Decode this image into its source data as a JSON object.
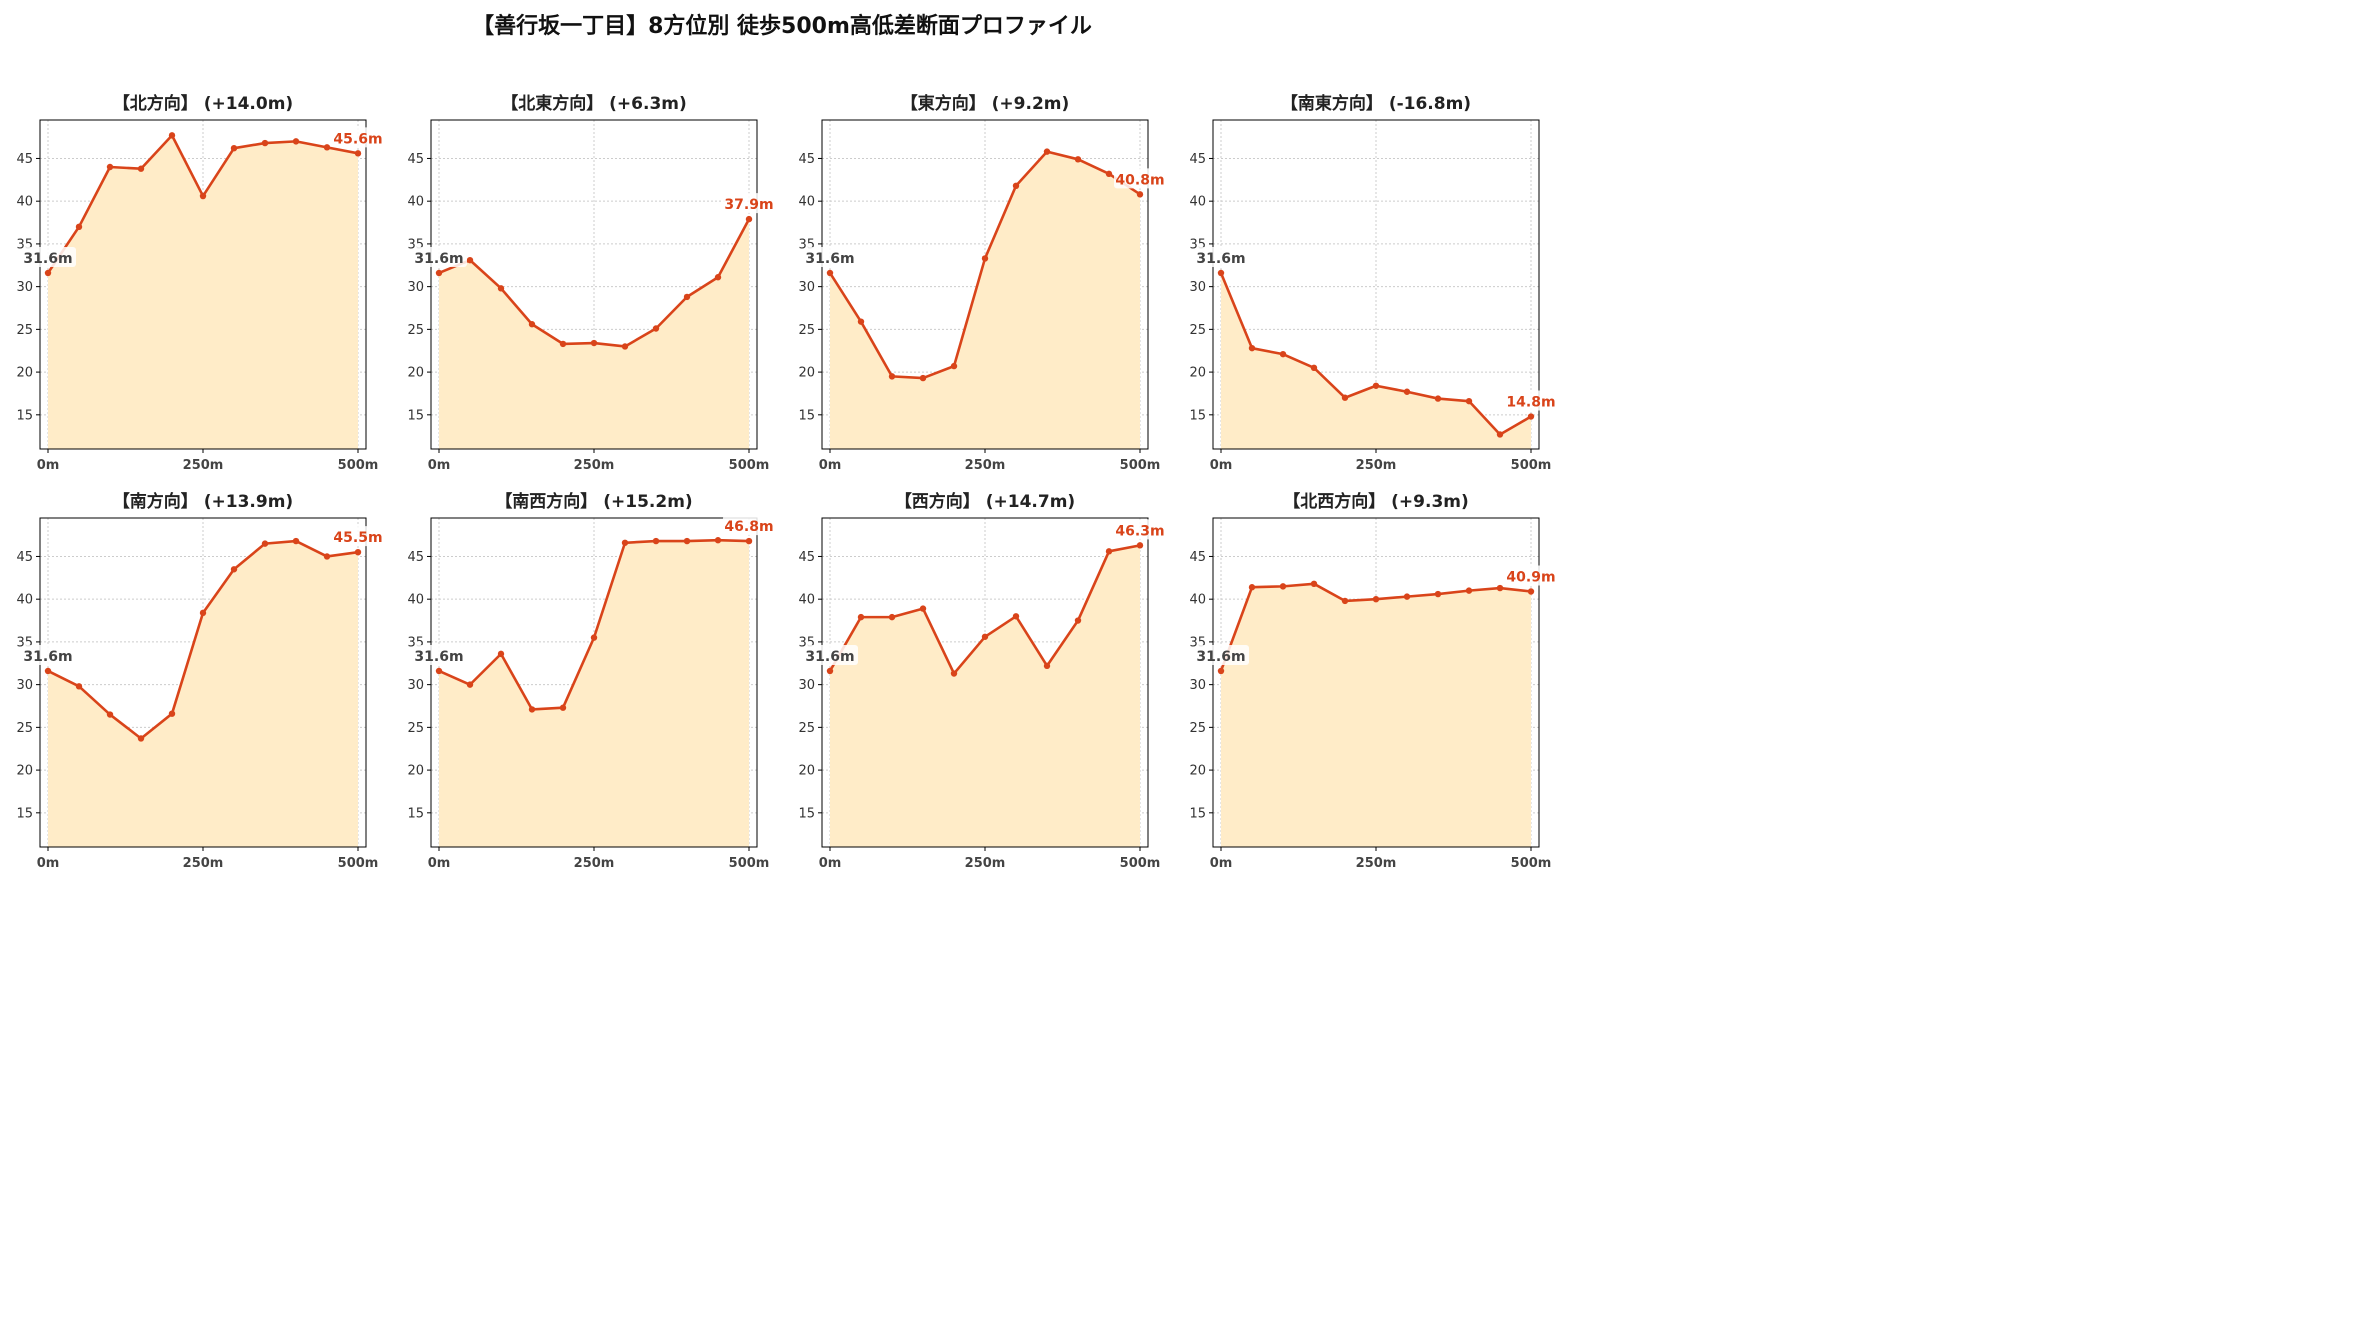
{
  "title": "【善行坂一丁目】8方位別 徒歩500m高低差断面プロファイル",
  "colors": {
    "line": "#d9441a",
    "fill": "#ffecc8",
    "end_label": "#d9441a",
    "grid": "#cccccc"
  },
  "chart_data": [
    {
      "type": "area",
      "title": "【北方向】 (+14.0m)",
      "start_label": "31.6m",
      "end_label": "45.6m",
      "x": [
        0,
        50,
        100,
        150,
        200,
        250,
        300,
        350,
        400,
        450,
        500
      ],
      "values": [
        31.6,
        37.0,
        44.0,
        43.8,
        47.7,
        40.6,
        46.2,
        46.8,
        47.0,
        46.3,
        45.6
      ],
      "xticks": [
        "0m",
        "250m",
        "500m"
      ],
      "yticks": [
        15,
        20,
        25,
        30,
        35,
        40,
        45
      ],
      "ylim": [
        11,
        49.5
      ],
      "grid": true
    },
    {
      "type": "area",
      "title": "【北東方向】 (+6.3m)",
      "start_label": "31.6m",
      "end_label": "37.9m",
      "x": [
        0,
        50,
        100,
        150,
        200,
        250,
        300,
        350,
        400,
        450,
        500
      ],
      "values": [
        31.6,
        33.1,
        29.8,
        25.6,
        23.3,
        23.4,
        23.0,
        25.1,
        28.8,
        31.1,
        37.9
      ],
      "xticks": [
        "0m",
        "250m",
        "500m"
      ],
      "yticks": [
        15,
        20,
        25,
        30,
        35,
        40,
        45
      ],
      "ylim": [
        11,
        49.5
      ],
      "grid": true
    },
    {
      "type": "area",
      "title": "【東方向】 (+9.2m)",
      "start_label": "31.6m",
      "end_label": "40.8m",
      "x": [
        0,
        50,
        100,
        150,
        200,
        250,
        300,
        350,
        400,
        450,
        500
      ],
      "values": [
        31.6,
        25.9,
        19.5,
        19.3,
        20.7,
        33.3,
        41.8,
        45.8,
        44.9,
        43.2,
        40.8
      ],
      "xticks": [
        "0m",
        "250m",
        "500m"
      ],
      "yticks": [
        15,
        20,
        25,
        30,
        35,
        40,
        45
      ],
      "ylim": [
        11,
        49.5
      ],
      "grid": true
    },
    {
      "type": "area",
      "title": "【南東方向】 (-16.8m)",
      "start_label": "31.6m",
      "end_label": "14.8m",
      "x": [
        0,
        50,
        100,
        150,
        200,
        250,
        300,
        350,
        400,
        450,
        500
      ],
      "values": [
        31.6,
        22.8,
        22.1,
        20.5,
        17.0,
        18.4,
        17.7,
        16.9,
        16.6,
        12.7,
        14.8
      ],
      "xticks": [
        "0m",
        "250m",
        "500m"
      ],
      "yticks": [
        15,
        20,
        25,
        30,
        35,
        40,
        45
      ],
      "ylim": [
        11,
        49.5
      ],
      "grid": true
    },
    {
      "type": "area",
      "title": "【南方向】 (+13.9m)",
      "start_label": "31.6m",
      "end_label": "45.5m",
      "x": [
        0,
        50,
        100,
        150,
        200,
        250,
        300,
        350,
        400,
        450,
        500
      ],
      "values": [
        31.6,
        29.8,
        26.5,
        23.7,
        26.6,
        38.4,
        43.5,
        46.5,
        46.8,
        45.0,
        45.5
      ],
      "xticks": [
        "0m",
        "250m",
        "500m"
      ],
      "yticks": [
        15,
        20,
        25,
        30,
        35,
        40,
        45
      ],
      "ylim": [
        11,
        49.5
      ],
      "grid": true
    },
    {
      "type": "area",
      "title": "【南西方向】 (+15.2m)",
      "start_label": "31.6m",
      "end_label": "46.8m",
      "x": [
        0,
        50,
        100,
        150,
        200,
        250,
        300,
        350,
        400,
        450,
        500
      ],
      "values": [
        31.6,
        30.0,
        33.6,
        27.1,
        27.3,
        35.5,
        46.6,
        46.8,
        46.8,
        46.9,
        46.8
      ],
      "xticks": [
        "0m",
        "250m",
        "500m"
      ],
      "yticks": [
        15,
        20,
        25,
        30,
        35,
        40,
        45
      ],
      "ylim": [
        11,
        49.5
      ],
      "grid": true
    },
    {
      "type": "area",
      "title": "【西方向】 (+14.7m)",
      "start_label": "31.6m",
      "end_label": "46.3m",
      "x": [
        0,
        50,
        100,
        150,
        200,
        250,
        300,
        350,
        400,
        450,
        500
      ],
      "values": [
        31.6,
        37.9,
        37.9,
        38.9,
        31.3,
        35.6,
        38.0,
        32.2,
        37.5,
        45.6,
        46.3
      ],
      "xticks": [
        "0m",
        "250m",
        "500m"
      ],
      "yticks": [
        15,
        20,
        25,
        30,
        35,
        40,
        45
      ],
      "ylim": [
        11,
        49.5
      ],
      "grid": true
    },
    {
      "type": "area",
      "title": "【北西方向】 (+9.3m)",
      "start_label": "31.6m",
      "end_label": "40.9m",
      "x": [
        0,
        50,
        100,
        150,
        200,
        250,
        300,
        350,
        400,
        450,
        500
      ],
      "values": [
        31.6,
        41.4,
        41.5,
        41.8,
        39.8,
        40.0,
        40.3,
        40.6,
        41.0,
        41.3,
        40.9
      ],
      "xticks": [
        "0m",
        "250m",
        "500m"
      ],
      "yticks": [
        15,
        20,
        25,
        30,
        35,
        40,
        45
      ],
      "ylim": [
        11,
        49.5
      ],
      "grid": true
    }
  ]
}
